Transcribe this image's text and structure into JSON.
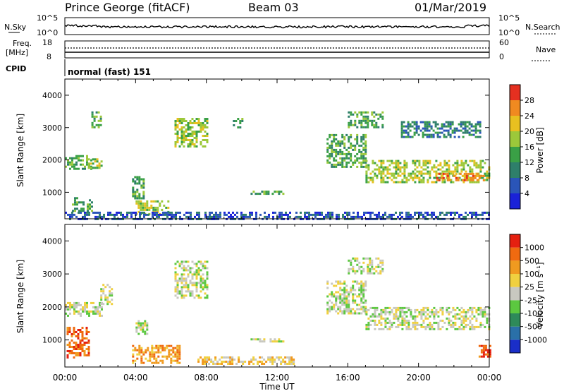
{
  "header": {
    "station": "Prince George (fitACF)",
    "beam": "Beam 03",
    "date": "01/Mar/2019"
  },
  "noise_panel": {
    "left_label": "N.Sky",
    "left_ticks": [
      "10^5",
      "10^0"
    ],
    "right_label": "N.Search",
    "right_ticks": [
      "10^5",
      "10^0"
    ]
  },
  "freq_panel": {
    "left_label_1": "Freq.",
    "left_label_2": "[MHz]",
    "left_ticks": [
      "18",
      "8"
    ],
    "right_label": "Nave",
    "right_ticks": [
      "60",
      "0"
    ]
  },
  "cpid_panel": {
    "label": "CPID",
    "value": "normal (fast) 151"
  },
  "x_axis": {
    "ticks": [
      "00:00",
      "04:00",
      "08:00",
      "12:00",
      "16:00",
      "20:00",
      "00:00"
    ],
    "label": "Time UT"
  },
  "y_axis": {
    "label": "Slant Range [km]",
    "ticks": [
      "1000",
      "2000",
      "3000",
      "4000"
    ]
  },
  "power_scale": {
    "label": "Power [dB]",
    "ticks": [
      "4",
      "8",
      "12",
      "16",
      "20",
      "24",
      "28"
    ],
    "colors": [
      "#1a22d8",
      "#2a55b8",
      "#2e7f6a",
      "#3aa046",
      "#9cc83a",
      "#e8c020",
      "#f08a20",
      "#e53020"
    ]
  },
  "velocity_scale": {
    "label": "Velocity [m s⁻¹]",
    "ticks": [
      "1000",
      "500",
      "100",
      "25",
      "-25",
      "-100",
      "-500",
      "-1000"
    ],
    "colors": [
      "#1a2ec8",
      "#2a70a8",
      "#2e8a5a",
      "#5cc840",
      "#c8c8c0",
      "#f0d040",
      "#f09a20",
      "#f06a10",
      "#e52010"
    ]
  },
  "chart_data": [
    {
      "type": "heatmap",
      "name": "power",
      "ylabel": "Slant Range [km]",
      "xlabel": "Time UT",
      "xlim_hours": [
        0,
        24
      ],
      "ylim_km": [
        180,
        4500
      ],
      "colorbar": {
        "label": "Power [dB]",
        "range": [
          0,
          30
        ]
      },
      "regions": [
        {
          "t0": 0.0,
          "t1": 1.5,
          "r0": 1750,
          "r1": 2150,
          "level": 3
        },
        {
          "t0": 1.3,
          "t1": 2.1,
          "r0": 1750,
          "r1": 2050,
          "level": 4
        },
        {
          "t0": 1.5,
          "t1": 2.0,
          "r0": 3000,
          "r1": 3500,
          "level": 3
        },
        {
          "t0": 0.4,
          "t1": 1.5,
          "r0": 450,
          "r1": 850,
          "level": 3
        },
        {
          "t0": 3.8,
          "t1": 4.4,
          "r0": 800,
          "r1": 1500,
          "level": 3
        },
        {
          "t0": 4.0,
          "t1": 5.8,
          "r0": 350,
          "r1": 750,
          "level": 4
        },
        {
          "t0": 6.2,
          "t1": 8.0,
          "r0": 2400,
          "r1": 3300,
          "level": 4
        },
        {
          "t0": 9.5,
          "t1": 10.0,
          "r0": 3000,
          "r1": 3300,
          "level": 3
        },
        {
          "t0": 10.5,
          "t1": 12.3,
          "r0": 950,
          "r1": 1050,
          "level": 3
        },
        {
          "t0": 14.8,
          "t1": 17.0,
          "r0": 1800,
          "r1": 2800,
          "level": 3
        },
        {
          "t0": 16.0,
          "t1": 18.0,
          "r0": 3000,
          "r1": 3500,
          "level": 3
        },
        {
          "t0": 17.0,
          "t1": 24.0,
          "r0": 1300,
          "r1": 2000,
          "level": 4
        },
        {
          "t0": 21.0,
          "t1": 23.8,
          "r0": 1350,
          "r1": 1600,
          "level": 6
        },
        {
          "t0": 19.0,
          "t1": 23.5,
          "r0": 2700,
          "r1": 3200,
          "level": 2
        },
        {
          "t0": 0.0,
          "t1": 24.0,
          "r0": 180,
          "r1": 400,
          "level": 1
        }
      ]
    },
    {
      "type": "heatmap",
      "name": "velocity",
      "ylabel": "Slant Range [km]",
      "xlabel": "Time UT",
      "xlim_hours": [
        0,
        24
      ],
      "ylim_km": [
        180,
        4500
      ],
      "colorbar": {
        "label": "Velocity [m s⁻¹]",
        "range": [
          -1000,
          1000
        ]
      },
      "regions": [
        {
          "t0": 0.0,
          "t1": 2.1,
          "r0": 1750,
          "r1": 2150,
          "level": 4
        },
        {
          "t0": 2.0,
          "t1": 2.6,
          "r0": 2100,
          "r1": 2700,
          "level": 4
        },
        {
          "t0": 0.1,
          "t1": 1.3,
          "r0": 450,
          "r1": 1400,
          "level": 7
        },
        {
          "t0": 3.8,
          "t1": 6.5,
          "r0": 300,
          "r1": 850,
          "level": 6
        },
        {
          "t0": 4.0,
          "t1": 4.6,
          "r0": 1200,
          "r1": 1600,
          "level": 4
        },
        {
          "t0": 6.2,
          "t1": 8.0,
          "r0": 2300,
          "r1": 3400,
          "level": 4
        },
        {
          "t0": 7.5,
          "t1": 13.0,
          "r0": 250,
          "r1": 500,
          "level": 5
        },
        {
          "t0": 10.5,
          "t1": 12.3,
          "r0": 950,
          "r1": 1050,
          "level": 4
        },
        {
          "t0": 14.8,
          "t1": 17.0,
          "r0": 1800,
          "r1": 2800,
          "level": 4
        },
        {
          "t0": 17.0,
          "t1": 24.0,
          "r0": 1350,
          "r1": 2000,
          "level": 4
        },
        {
          "t0": 16.0,
          "t1": 18.0,
          "r0": 3000,
          "r1": 3500,
          "level": 4
        },
        {
          "t0": 23.4,
          "t1": 24.0,
          "r0": 500,
          "r1": 850,
          "level": 7
        }
      ]
    }
  ]
}
